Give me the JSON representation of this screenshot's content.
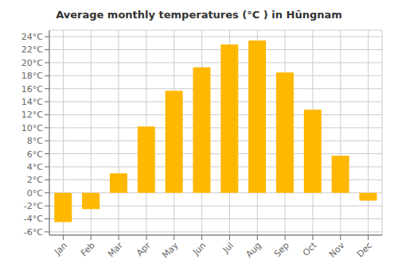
{
  "chart_data": {
    "type": "bar",
    "title": "Average monthly temperatures (°C ) in Hūngnam",
    "categories": [
      "Jan",
      "Feb",
      "Mar",
      "Apr",
      "May",
      "Jun",
      "Jul",
      "Aug",
      "Sep",
      "Oct",
      "Nov",
      "Dec"
    ],
    "values": [
      -4.5,
      -2.5,
      3.0,
      10.2,
      15.7,
      19.3,
      22.8,
      23.4,
      18.5,
      12.8,
      5.7,
      -1.2
    ],
    "color": "#FFB800",
    "ylim": [
      -6.5,
      25.0
    ],
    "yticks": [
      {
        "value": -6,
        "label": "-6°C"
      },
      {
        "value": -4,
        "label": "-4°C"
      },
      {
        "value": -2,
        "label": "-2°C"
      },
      {
        "value": 0,
        "label": "0°C"
      },
      {
        "value": 2,
        "label": "2°C"
      },
      {
        "value": 4,
        "label": "4°C"
      },
      {
        "value": 6,
        "label": "6°C"
      },
      {
        "value": 8,
        "label": "8°C"
      },
      {
        "value": 10,
        "label": "10°C"
      },
      {
        "value": 12,
        "label": "12°C"
      },
      {
        "value": 14,
        "label": "14°C"
      },
      {
        "value": 16,
        "label": "16°C"
      },
      {
        "value": 18,
        "label": "18°C"
      },
      {
        "value": 20,
        "label": "20°C"
      },
      {
        "value": 22,
        "label": "22°C"
      },
      {
        "value": 24,
        "label": "24°C"
      }
    ],
    "grid": true
  }
}
